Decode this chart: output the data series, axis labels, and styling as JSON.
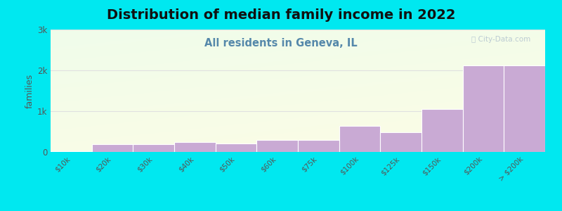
{
  "title": "Distribution of median family income in 2022",
  "subtitle": "All residents in Geneva, IL",
  "categories": [
    "$10k",
    "$20k",
    "$30k",
    "$40k",
    "$50k",
    "$60k",
    "$75k",
    "$100k",
    "$125k",
    "$150k",
    "$200k",
    "> $200k"
  ],
  "values": [
    20,
    185,
    185,
    245,
    215,
    290,
    290,
    640,
    490,
    1050,
    2120,
    2120
  ],
  "bar_color": "#c9aad4",
  "bar_edgecolor": "#ffffff",
  "background_outer": "#00e8f0",
  "title_fontsize": 14,
  "subtitle_fontsize": 10.5,
  "subtitle_color": "#5588aa",
  "ylabel": "families",
  "ylim": [
    0,
    3000
  ],
  "yticks": [
    0,
    1000,
    2000,
    3000
  ],
  "ytick_labels": [
    "0",
    "1k",
    "2k",
    "3k"
  ],
  "watermark": "ⓘ City-Data.com",
  "grid_color": "#e0e0e0",
  "plot_bg_top_color": "#f5f9ee",
  "plot_bg_bottom_color": "#e8f4e8"
}
